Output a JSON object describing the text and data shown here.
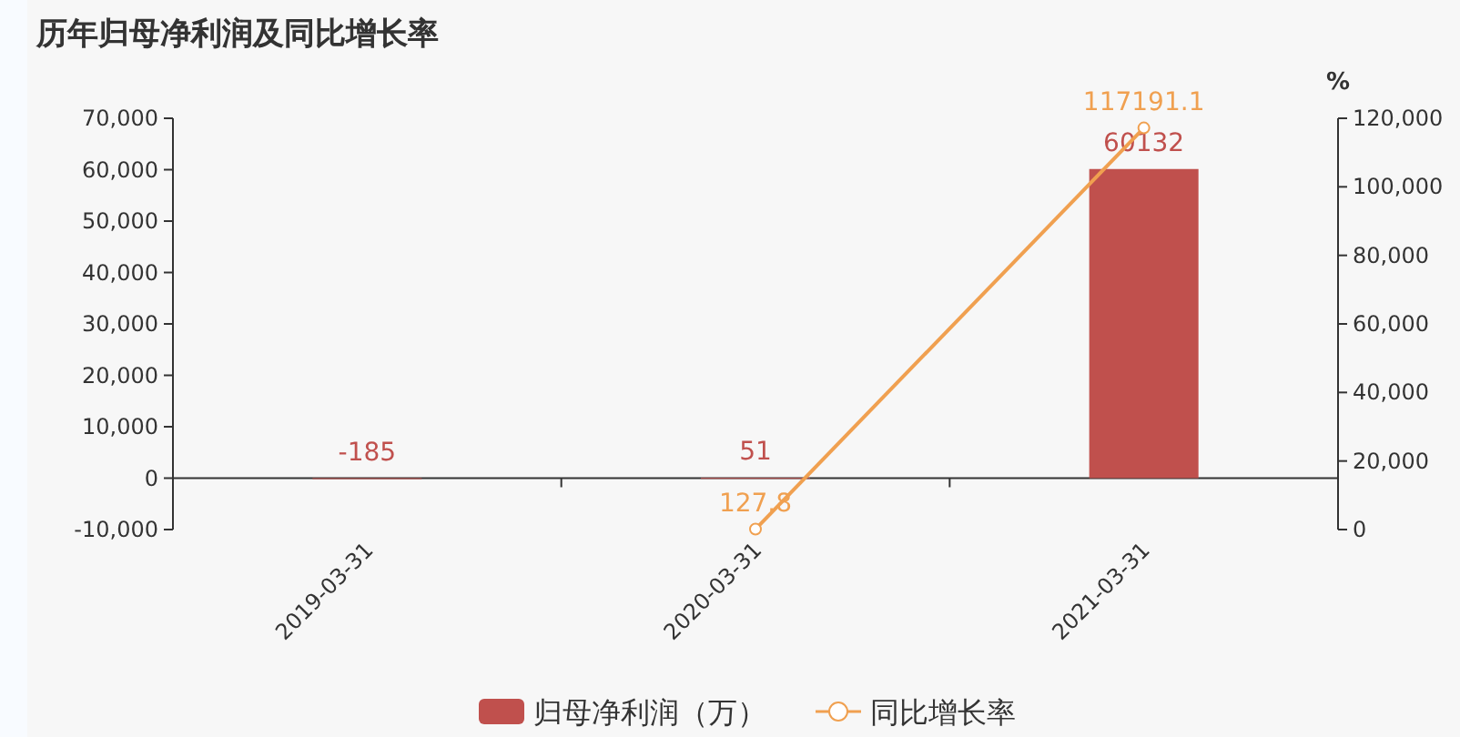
{
  "chart_data": {
    "type": "bar",
    "title": "历年归母净利润及同比增长率",
    "y2label": "%",
    "categories": [
      "2019-03-31",
      "2020-03-31",
      "2021-03-31"
    ],
    "series": [
      {
        "name": "归母净利润（万）",
        "color": "#c0504d",
        "values": [
          -185,
          51,
          60132
        ]
      },
      {
        "name": "同比增长率",
        "type": "line",
        "axis": "y2",
        "color": "#f0a050",
        "values": [
          null,
          127.8,
          117191.1
        ]
      }
    ],
    "ylim": [
      -10000,
      70000
    ],
    "yticks": [
      {
        "value": -10000,
        "label": "-10,000"
      },
      0,
      {
        "value": 10000,
        "label": "10,000"
      },
      {
        "value": 20000,
        "label": "20,000"
      },
      {
        "value": 30000,
        "label": "30,000"
      },
      {
        "value": 40000,
        "label": "40,000"
      },
      {
        "value": 50000,
        "label": "50,000"
      },
      {
        "value": 60000,
        "label": "60,000"
      },
      {
        "value": 70000,
        "label": "70,000"
      }
    ],
    "y2lim": [
      0,
      120000
    ],
    "y2ticks": [
      0,
      {
        "value": 20000,
        "label": "20,000"
      },
      {
        "value": 40000,
        "label": "40,000"
      },
      {
        "value": 60000,
        "label": "60,000"
      },
      {
        "value": 80000,
        "label": "80,000"
      },
      {
        "value": 100000,
        "label": "100,000"
      },
      {
        "value": 120000,
        "label": "120,000"
      }
    ],
    "data_labels": true,
    "legend": "bottom",
    "marker": "circle"
  }
}
